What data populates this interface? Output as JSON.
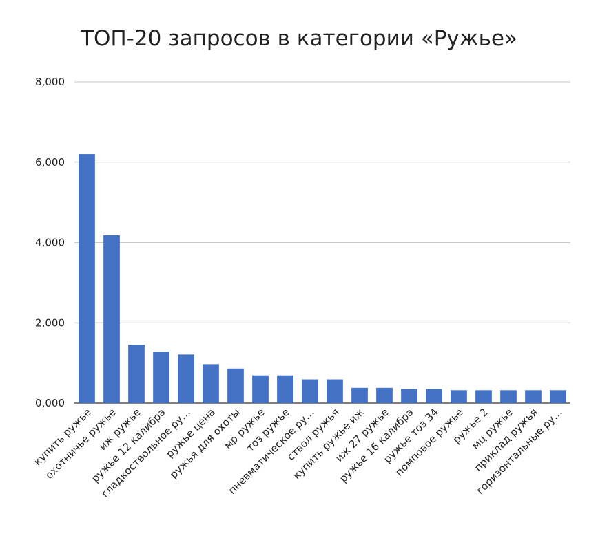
{
  "chart_data": {
    "type": "bar",
    "title": "ТОП-20 запросов в категории «Ружье»",
    "xlabel": "",
    "ylabel": "",
    "ylim": [
      0,
      8000
    ],
    "yticks": [
      0,
      2000,
      4000,
      6000,
      8000
    ],
    "ytick_labels": [
      "0,000",
      "2,000",
      "4,000",
      "6,000",
      "8,000"
    ],
    "grid": true,
    "legend": "none",
    "bar_color": "#4472c4",
    "categories": [
      "купить ружье",
      "охотничье ружье",
      "иж ружье",
      "ружье 12 калибра",
      "гладкоствольное ру…",
      "ружье цена",
      "ружья для охоты",
      "мр ружье",
      "тоз ружье",
      "пневматическое ру…",
      "ствол ружья",
      "купить ружье иж",
      "иж 27 ружье",
      "ружье 16 калибра",
      "ружье тоз 34",
      "помповое ружье",
      "ружье 2",
      "мц ружье",
      "приклад ружья",
      "горизонтальные ру…"
    ],
    "values": [
      6200,
      4180,
      1450,
      1280,
      1210,
      970,
      860,
      690,
      690,
      590,
      590,
      380,
      380,
      350,
      350,
      320,
      320,
      320,
      320,
      320
    ]
  }
}
